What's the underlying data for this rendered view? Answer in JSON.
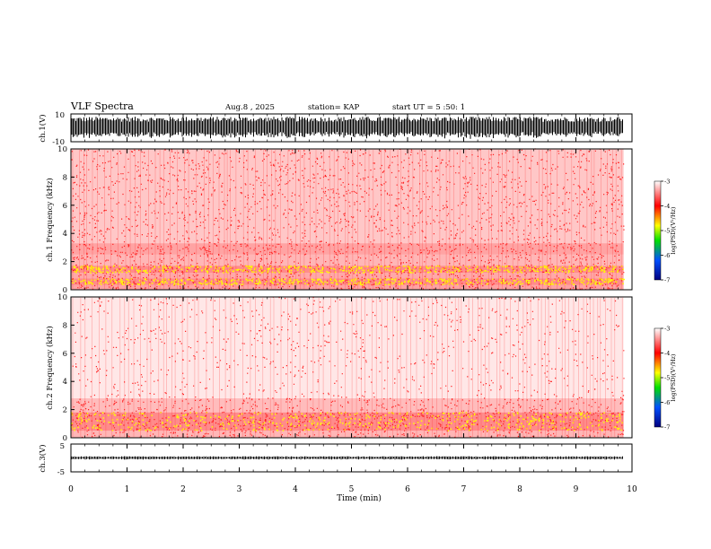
{
  "header": {
    "title": "VLF Spectra",
    "date": "Aug.8 , 2025",
    "station": "station= KAP",
    "start": "start UT = 5 :50: 1"
  },
  "colors": {
    "spectrogram_low": "#ffffff",
    "spectrogram_mid": "#ff2020",
    "spectrogram_high": "#ffff00",
    "trace": "#000000"
  },
  "chart_data": [
    {
      "type": "line",
      "panel": "ch1-waveform",
      "ylabel": "ch.1(V)",
      "ylim": [
        -10,
        10
      ],
      "yticks": [
        "10",
        "-10"
      ],
      "xlim": [
        0,
        10
      ],
      "description_values": {
        "amplitude_typical_V": 8
      }
    },
    {
      "type": "heatmap",
      "panel": "ch1-spectrogram",
      "ylabel": "ch.1 Frequency (kHz)",
      "ylim": [
        0,
        10
      ],
      "yticks": [
        "0",
        "2",
        "4",
        "6",
        "8",
        "10"
      ],
      "xlim": [
        0,
        9.85
      ],
      "bands_kHz": [
        {
          "from": 0.0,
          "to": 0.35,
          "level": 0.75
        },
        {
          "from": 0.35,
          "to": 0.8,
          "level": 0.95
        },
        {
          "from": 0.8,
          "to": 1.2,
          "level": 0.7
        },
        {
          "from": 1.2,
          "to": 1.7,
          "level": 0.95
        },
        {
          "from": 1.7,
          "to": 2.5,
          "level": 0.6
        },
        {
          "from": 2.5,
          "to": 3.3,
          "level": 0.75
        },
        {
          "from": 3.3,
          "to": 10.0,
          "level": 0.45
        }
      ],
      "colorbar": {
        "label": "log(PSD)(V²/Hz)",
        "ticks": [
          "-3",
          "-4",
          "-5",
          "-6",
          "-7"
        ],
        "range": [
          -7,
          -3
        ]
      }
    },
    {
      "type": "heatmap",
      "panel": "ch2-spectrogram",
      "ylabel": "ch.2 Frequency (kHz)",
      "ylim": [
        0,
        10
      ],
      "yticks": [
        "0",
        "2",
        "4",
        "6",
        "8",
        "10"
      ],
      "xlim": [
        0,
        9.85
      ],
      "bands_kHz": [
        {
          "from": 0.0,
          "to": 0.5,
          "level": 0.6
        },
        {
          "from": 0.5,
          "to": 1.8,
          "level": 0.95
        },
        {
          "from": 1.8,
          "to": 2.8,
          "level": 0.55
        },
        {
          "from": 2.8,
          "to": 10.0,
          "level": 0.2
        }
      ],
      "colorbar": {
        "label": "log(PSD)(V²/Hz)",
        "ticks": [
          "-3",
          "-4",
          "-5",
          "-6",
          "-7"
        ],
        "range": [
          -7,
          -3
        ]
      }
    },
    {
      "type": "line",
      "panel": "ch3-waveform",
      "ylabel": "ch.3(V)",
      "ylim": [
        -5,
        5
      ],
      "yticks": [
        "5",
        "-5"
      ],
      "xlim": [
        0,
        10
      ],
      "description_values": {
        "amplitude_typical_V": 0.6
      }
    }
  ],
  "xaxis": {
    "label": "Time (min)",
    "range": [
      0,
      10
    ],
    "ticks": [
      "0",
      "1",
      "2",
      "3",
      "4",
      "5",
      "6",
      "7",
      "8",
      "9",
      "10"
    ]
  }
}
